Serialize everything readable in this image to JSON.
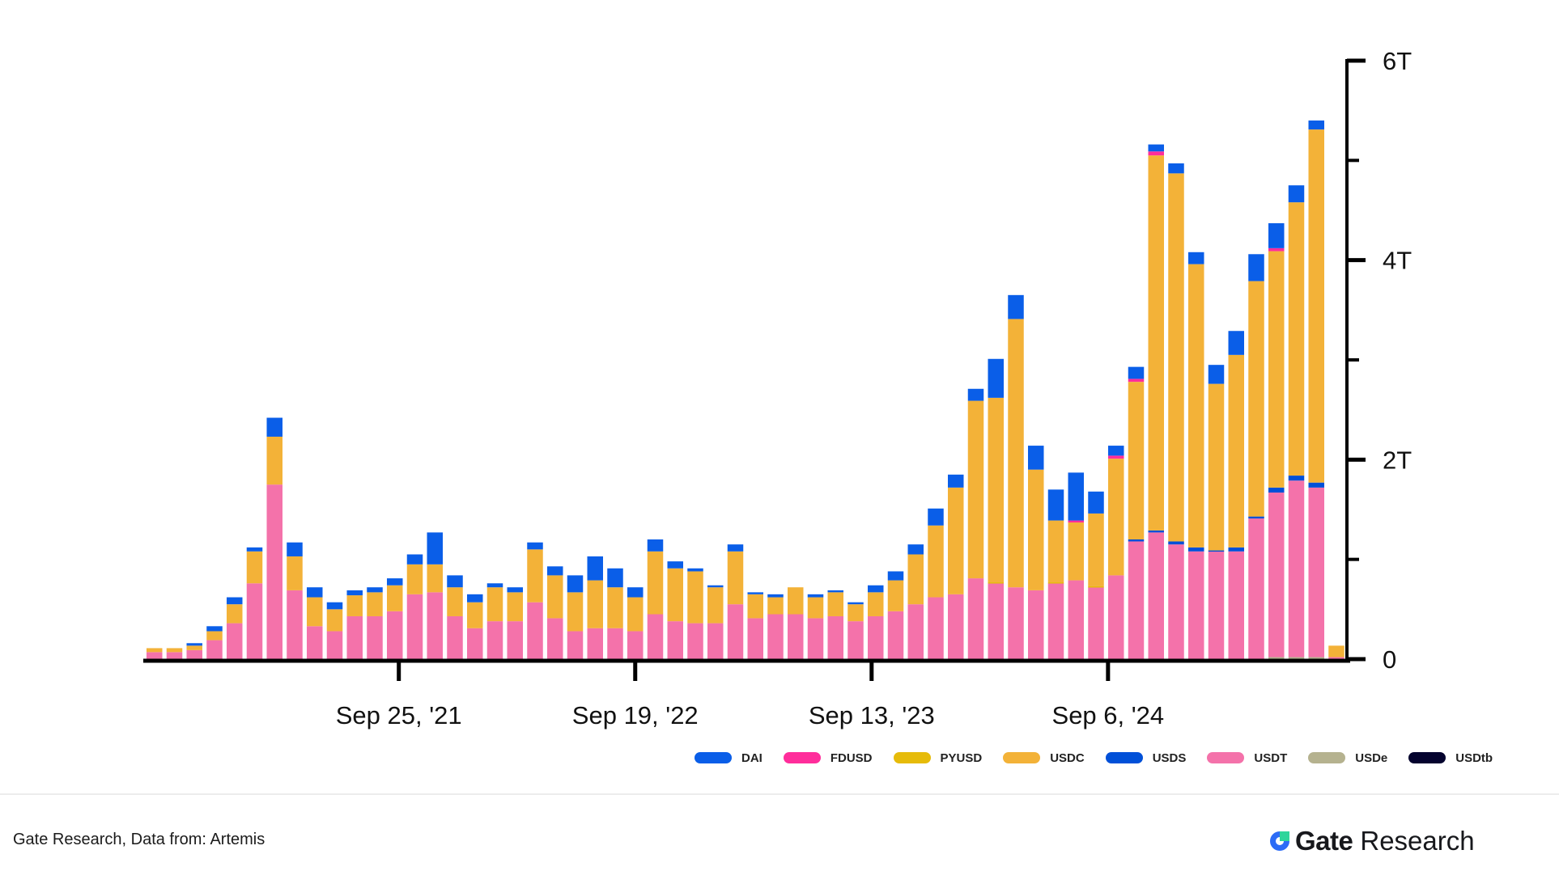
{
  "chart_data": {
    "type": "bar",
    "stacked": true,
    "title": "",
    "xlabel": "",
    "ylabel": "",
    "ylim": [
      0,
      6
    ],
    "y_unit": "T",
    "y_ticks": [
      {
        "value": 0,
        "label": "0"
      },
      {
        "value": 1,
        "label": ""
      },
      {
        "value": 2,
        "label": "2T"
      },
      {
        "value": 3,
        "label": ""
      },
      {
        "value": 4,
        "label": "4T"
      },
      {
        "value": 5,
        "label": ""
      },
      {
        "value": 6,
        "label": "6T"
      }
    ],
    "x_ticks": [
      {
        "bar_index": 12.2,
        "label": "Sep 25, '21"
      },
      {
        "bar_index": 24.0,
        "label": "Sep 19, '22"
      },
      {
        "bar_index": 35.8,
        "label": "Sep 13, '23"
      },
      {
        "bar_index": 47.6,
        "label": "Sep 6, '24"
      }
    ],
    "axis_position": "right",
    "grid": false,
    "legend_position": "bottom-right",
    "stack_order": [
      "USDe",
      "USDT",
      "USDS",
      "PYUSD",
      "USDC",
      "FDUSD",
      "DAI",
      "USDtb"
    ],
    "series": [
      {
        "name": "DAI",
        "color": "#0a5ee8",
        "values": [
          0,
          0,
          0.025,
          0.05,
          0.07,
          0.04,
          0.19,
          0.14,
          0.1,
          0.07,
          0.05,
          0.05,
          0.07,
          0.1,
          0.32,
          0.12,
          0.08,
          0.04,
          0.05,
          0.07,
          0.09,
          0.17,
          0.24,
          0.19,
          0.1,
          0.12,
          0.07,
          0.03,
          0.02,
          0.07,
          0.02,
          0.03,
          0,
          0.03,
          0.02,
          0.02,
          0.07,
          0.09,
          0.1,
          0.17,
          0.13,
          0.12,
          0.39,
          0.24,
          0.24,
          0.31,
          0.48,
          0.22,
          0.1,
          0.12,
          0.07,
          0.1,
          0.12,
          0.19,
          0.24,
          0.27,
          0.25,
          0.17,
          0.09,
          0
        ]
      },
      {
        "name": "FDUSD",
        "color": "#ff2d9b",
        "values": [
          0,
          0,
          0,
          0,
          0,
          0,
          0,
          0,
          0,
          0,
          0,
          0,
          0,
          0,
          0,
          0,
          0,
          0,
          0,
          0,
          0,
          0,
          0,
          0,
          0,
          0,
          0,
          0,
          0,
          0,
          0,
          0,
          0,
          0,
          0,
          0,
          0,
          0,
          0,
          0,
          0,
          0,
          0,
          0,
          0,
          0,
          0.02,
          0,
          0.03,
          0.03,
          0.04,
          0,
          0,
          0,
          0,
          0,
          0.03,
          0,
          0,
          0
        ]
      },
      {
        "name": "PYUSD",
        "color": "#e6bb0a",
        "values": [
          0,
          0,
          0,
          0,
          0,
          0,
          0,
          0,
          0,
          0,
          0,
          0,
          0,
          0,
          0,
          0,
          0,
          0,
          0,
          0,
          0,
          0,
          0,
          0,
          0,
          0,
          0,
          0,
          0,
          0,
          0,
          0,
          0,
          0,
          0,
          0,
          0,
          0,
          0,
          0,
          0,
          0,
          0.01,
          0,
          0,
          0.01,
          0,
          0.01,
          0,
          0,
          0,
          0,
          0,
          0,
          0,
          0,
          0,
          0,
          0,
          0
        ]
      },
      {
        "name": "USDC",
        "color": "#f3b238",
        "values": [
          0.04,
          0.04,
          0.045,
          0.09,
          0.19,
          0.32,
          0.48,
          0.34,
          0.29,
          0.22,
          0.21,
          0.24,
          0.26,
          0.3,
          0.28,
          0.29,
          0.26,
          0.34,
          0.29,
          0.53,
          0.43,
          0.39,
          0.48,
          0.41,
          0.34,
          0.63,
          0.53,
          0.52,
          0.36,
          0.53,
          0.24,
          0.17,
          0.27,
          0.21,
          0.24,
          0.17,
          0.24,
          0.31,
          0.5,
          0.72,
          1.07,
          1.78,
          1.85,
          2.69,
          1.21,
          0.62,
          0.58,
          0.73,
          1.17,
          1.58,
          3.76,
          3.69,
          2.84,
          1.67,
          1.93,
          2.36,
          2.37,
          2.74,
          3.54,
          0.115
        ]
      },
      {
        "name": "USDS",
        "color": "#0050d8",
        "values": [
          0,
          0,
          0,
          0,
          0,
          0,
          0,
          0,
          0,
          0,
          0,
          0,
          0,
          0,
          0,
          0,
          0,
          0,
          0,
          0,
          0,
          0,
          0,
          0,
          0,
          0,
          0,
          0,
          0,
          0,
          0,
          0,
          0,
          0,
          0,
          0,
          0,
          0,
          0,
          0,
          0,
          0,
          0,
          0,
          0,
          0,
          0,
          0,
          0,
          0.02,
          0.02,
          0.03,
          0.04,
          0.01,
          0.04,
          0.02,
          0.05,
          0.05,
          0.05,
          0
        ]
      },
      {
        "name": "USDT",
        "color": "#f472aa",
        "values": [
          0.07,
          0.07,
          0.09,
          0.19,
          0.36,
          0.76,
          1.75,
          0.69,
          0.33,
          0.28,
          0.43,
          0.43,
          0.48,
          0.65,
          0.67,
          0.43,
          0.31,
          0.38,
          0.38,
          0.57,
          0.41,
          0.28,
          0.31,
          0.31,
          0.28,
          0.45,
          0.38,
          0.36,
          0.36,
          0.55,
          0.41,
          0.45,
          0.45,
          0.41,
          0.43,
          0.38,
          0.43,
          0.48,
          0.55,
          0.62,
          0.65,
          0.81,
          0.76,
          0.72,
          0.69,
          0.76,
          0.79,
          0.72,
          0.84,
          1.18,
          1.27,
          1.15,
          1.08,
          1.08,
          1.08,
          1.41,
          1.65,
          1.77,
          1.7,
          0.02
        ]
      },
      {
        "name": "USDe",
        "color": "#b5b28f",
        "values": [
          0,
          0,
          0,
          0,
          0,
          0,
          0,
          0,
          0,
          0,
          0,
          0,
          0,
          0,
          0,
          0,
          0,
          0,
          0,
          0,
          0,
          0,
          0,
          0,
          0,
          0,
          0,
          0,
          0,
          0,
          0,
          0,
          0,
          0,
          0,
          0,
          0,
          0,
          0,
          0,
          0,
          0,
          0,
          0,
          0,
          0,
          0,
          0,
          0,
          0,
          0,
          0,
          0,
          0,
          0,
          0,
          0.02,
          0.02,
          0.02,
          0
        ]
      },
      {
        "name": "USDtb",
        "color": "#04032e",
        "values": [
          0,
          0,
          0,
          0,
          0,
          0,
          0,
          0,
          0,
          0,
          0,
          0,
          0,
          0,
          0,
          0,
          0,
          0,
          0,
          0,
          0,
          0,
          0,
          0,
          0,
          0,
          0,
          0,
          0,
          0,
          0,
          0,
          0,
          0,
          0,
          0,
          0,
          0,
          0,
          0,
          0,
          0,
          0,
          0,
          0,
          0,
          0,
          0,
          0,
          0,
          0,
          0,
          0,
          0,
          0,
          0,
          0,
          0,
          0,
          0
        ]
      }
    ]
  },
  "legend": {
    "items": [
      {
        "label": "DAI",
        "color": "#0a5ee8"
      },
      {
        "label": "FDUSD",
        "color": "#ff2d9b"
      },
      {
        "label": "PYUSD",
        "color": "#e6bb0a"
      },
      {
        "label": "USDC",
        "color": "#f3b238"
      },
      {
        "label": "USDS",
        "color": "#0050d8"
      },
      {
        "label": "USDT",
        "color": "#f472aa"
      },
      {
        "label": "USDe",
        "color": "#b5b28f"
      },
      {
        "label": "USDtb",
        "color": "#04032e"
      }
    ]
  },
  "footer": {
    "source": "Gate Research, Data from:  Artemis",
    "logo_brand": "Gate",
    "logo_suffix": "Research",
    "logo_colors": {
      "ring": "#2c6cf6",
      "square": "#2ed59b"
    }
  }
}
